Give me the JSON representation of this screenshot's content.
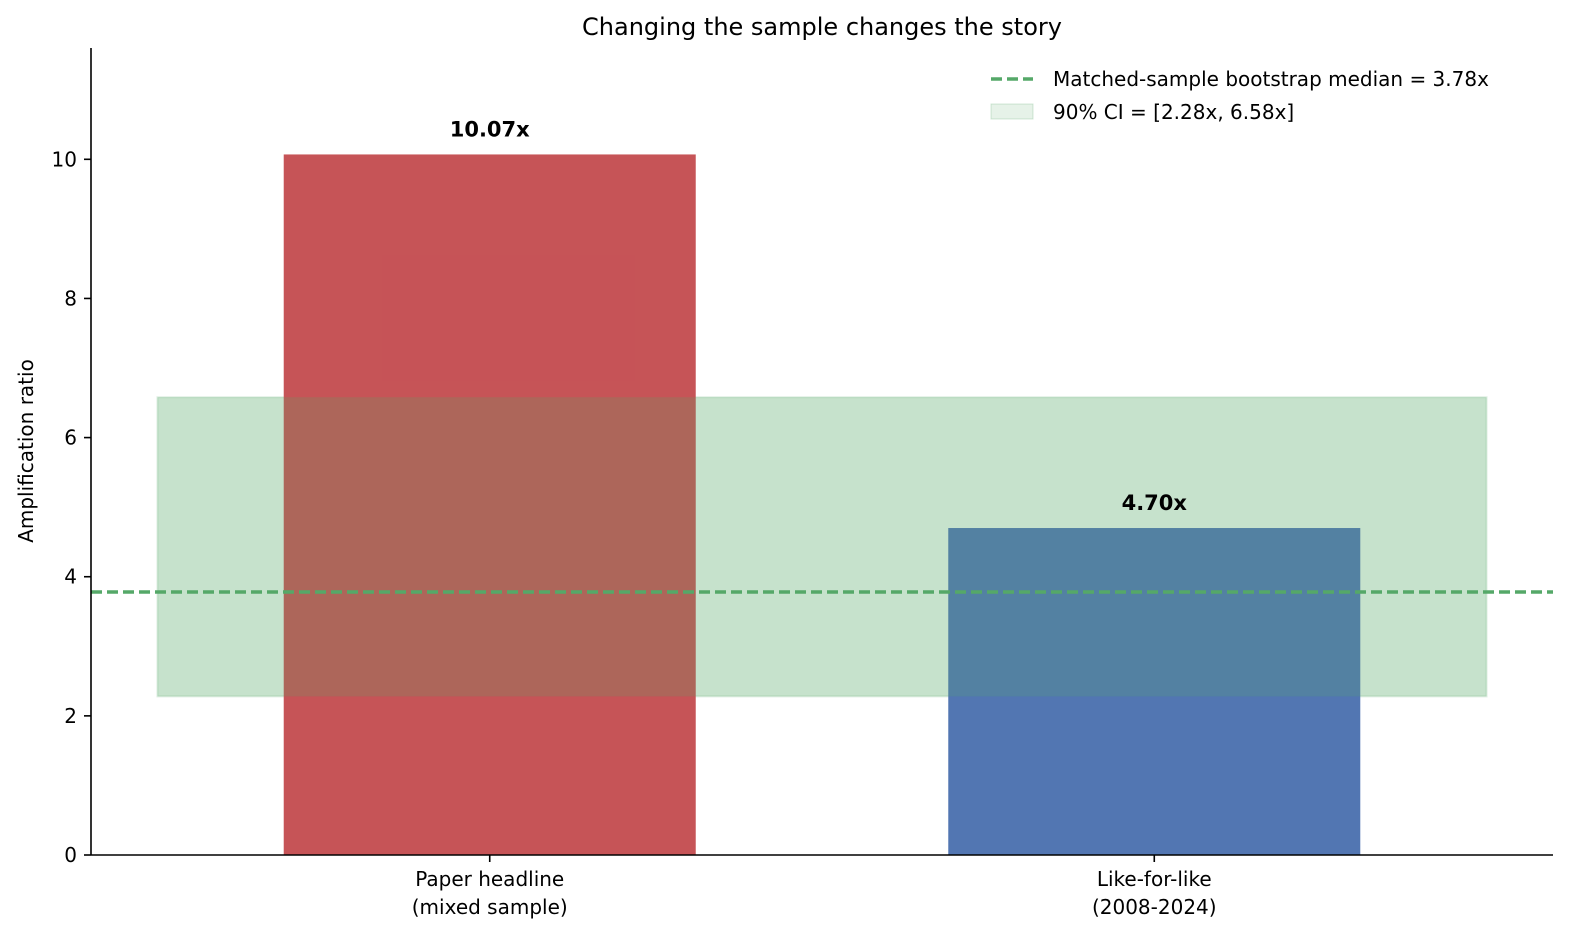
{
  "chart_data": {
    "type": "bar",
    "title": "Changing the sample changes the story",
    "xlabel": "",
    "ylabel": "Amplification ratio",
    "ylim": [
      0,
      11.6
    ],
    "yticks": [
      "0",
      "2",
      "4",
      "6",
      "8",
      "10"
    ],
    "grid": false,
    "legend_position": "top-right",
    "categories": [
      [
        "Paper headline",
        "(mixed sample)"
      ],
      [
        "Like-for-like",
        "(2008-2024)"
      ]
    ],
    "values": [
      10.07,
      4.7
    ],
    "data_labels": [
      "10.07x",
      "4.70x"
    ],
    "bar_colors": [
      "#c44e52",
      "#4c72b0"
    ],
    "reference_line": {
      "value": 3.78,
      "label": "Matched-sample bootstrap median = 3.78x",
      "color": "#55a868",
      "style": "dashed"
    },
    "ci_band": {
      "low": 2.28,
      "high": 6.58,
      "label": "90% CI = [2.28x, 6.58x]",
      "color": "#55a868"
    }
  }
}
